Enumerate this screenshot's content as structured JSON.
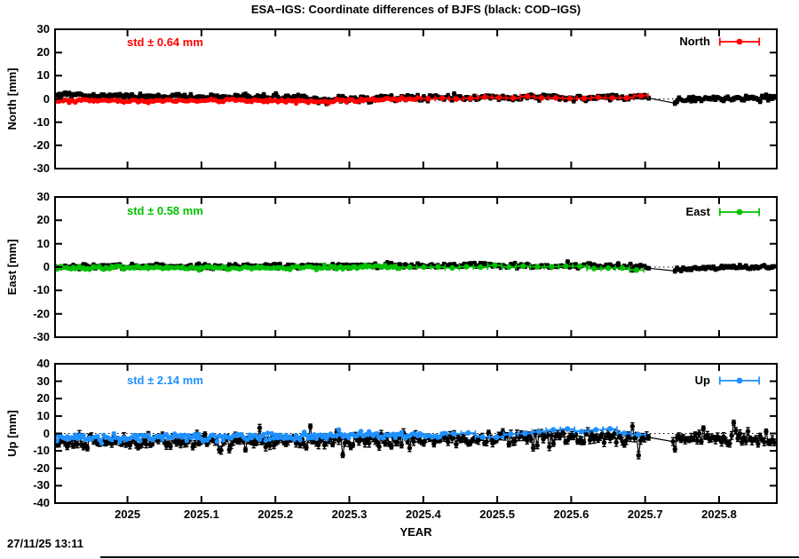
{
  "title": "ESA−IGS: Coordinate differences of BJFS (black: COD−IGS)",
  "timestamp": "27/11/25 13:11",
  "chart_data": {
    "type": "scatter",
    "xlabel": "YEAR",
    "x_range": [
      2024.902,
      2025.878
    ],
    "x_ticks": {
      "values": [
        2025,
        2025.1,
        2025.2,
        2025.3,
        2025.4,
        2025.5,
        2025.6,
        2025.7,
        2025.8
      ],
      "labels": [
        "2025",
        "2025.1",
        "2025.2",
        "2025.3",
        "2025.4",
        "2025.5",
        "2025.6",
        "2025.7",
        "2025.8"
      ]
    },
    "background": "#ffffff",
    "frame_color": "#000000",
    "zero_line_style": "dotted",
    "legend_position": "top-right-in-panel",
    "grid": false,
    "panels": [
      {
        "name": "North",
        "ylabel": "North [mm]",
        "ylim": [
          -30,
          30
        ],
        "yticks": {
          "values": [
            30,
            20,
            10,
            0,
            -10,
            -20,
            -30
          ],
          "labels": [
            "30",
            "20",
            "10",
            "0",
            "-10",
            "-20",
            "-30"
          ]
        },
        "std_label": "std ± 0.64 mm",
        "std_mm": 0.64,
        "legend_label": "North",
        "color": "#ff0000",
        "zero_line": true,
        "series": [
          {
            "name": "COD−IGS",
            "color": "#000000",
            "cadence": "daily",
            "seed": 101,
            "x_start": 2024.902,
            "x_end": 2025.877,
            "noise_std": 0.6,
            "errorbar_mm": 0.8,
            "gaps": [
              [
                2025.705,
                2025.738
              ]
            ],
            "mean_curve": [
              [
                2024.902,
                1.5
              ],
              [
                2025.05,
                1.2
              ],
              [
                2025.15,
                0.9
              ],
              [
                2025.22,
                0.7
              ],
              [
                2025.25,
                0.2
              ],
              [
                2025.27,
                -0.9
              ],
              [
                2025.29,
                0.3
              ],
              [
                2025.35,
                0.4
              ],
              [
                2025.45,
                0.5
              ],
              [
                2025.52,
                0.7
              ],
              [
                2025.55,
                1.0
              ],
              [
                2025.6,
                0.4
              ],
              [
                2025.65,
                0.6
              ],
              [
                2025.7,
                0.9
              ],
              [
                2025.735,
                -1.3
              ],
              [
                2025.76,
                0.0
              ],
              [
                2025.8,
                0.3
              ],
              [
                2025.877,
                0.6
              ]
            ]
          },
          {
            "name": "ESA−IGS",
            "color": "#ff0000",
            "cadence": "daily-then-weekly",
            "seed": 202,
            "x_start": 2024.902,
            "daily_end": 2025.395,
            "weekly_end": 2025.695,
            "noise_std": 0.4,
            "weekly_noise_std": 0.25,
            "errorbar_mm": 0.4,
            "mean_curve": [
              [
                2024.902,
                -0.7
              ],
              [
                2025.0,
                -0.9
              ],
              [
                2025.1,
                -0.7
              ],
              [
                2025.2,
                -0.8
              ],
              [
                2025.27,
                -1.2
              ],
              [
                2025.32,
                -0.4
              ],
              [
                2025.395,
                -0.1
              ]
            ],
            "weekly_mean_curve": [
              [
                2025.41,
                0.0
              ],
              [
                2025.46,
                0.3
              ],
              [
                2025.52,
                0.4
              ],
              [
                2025.56,
                0.8
              ],
              [
                2025.6,
                0.3
              ],
              [
                2025.64,
                0.6
              ],
              [
                2025.695,
                0.9
              ]
            ]
          }
        ]
      },
      {
        "name": "East",
        "ylabel": "East [mm]",
        "ylim": [
          -30,
          30
        ],
        "yticks": {
          "values": [
            30,
            20,
            10,
            0,
            -10,
            -20,
            -30
          ],
          "labels": [
            "30",
            "20",
            "10",
            "0",
            "-10",
            "-20",
            "-30"
          ]
        },
        "std_label": "std ± 0.58 mm",
        "std_mm": 0.58,
        "legend_label": "East",
        "color": "#00c000",
        "zero_line": true,
        "series": [
          {
            "name": "COD−IGS",
            "color": "#000000",
            "cadence": "daily",
            "seed": 303,
            "x_start": 2024.902,
            "x_end": 2025.877,
            "noise_std": 0.55,
            "errorbar_mm": 0.7,
            "gaps": [
              [
                2025.705,
                2025.738
              ]
            ],
            "mean_curve": [
              [
                2024.902,
                0.3
              ],
              [
                2025.1,
                0.3
              ],
              [
                2025.2,
                0.5
              ],
              [
                2025.3,
                0.6
              ],
              [
                2025.4,
                0.8
              ],
              [
                2025.5,
                0.5
              ],
              [
                2025.57,
                0.4
              ],
              [
                2025.62,
                1.0
              ],
              [
                2025.66,
                0.3
              ],
              [
                2025.7,
                0.1
              ],
              [
                2025.735,
                -1.5
              ],
              [
                2025.77,
                -0.5
              ],
              [
                2025.82,
                -0.2
              ],
              [
                2025.877,
                -0.3
              ]
            ]
          },
          {
            "name": "ESA−IGS",
            "color": "#00c000",
            "cadence": "daily-then-weekly",
            "seed": 404,
            "x_start": 2024.902,
            "daily_end": 2025.37,
            "weekly_end": 2025.69,
            "noise_std": 0.4,
            "weekly_noise_std": 0.3,
            "errorbar_mm": 0.4,
            "mean_curve": [
              [
                2024.902,
                -0.2
              ],
              [
                2025.0,
                -0.3
              ],
              [
                2025.1,
                -0.2
              ],
              [
                2025.2,
                -0.3
              ],
              [
                2025.3,
                -0.2
              ],
              [
                2025.37,
                0.0
              ]
            ],
            "weekly_mean_curve": [
              [
                2025.39,
                0.1
              ],
              [
                2025.45,
                0.0
              ],
              [
                2025.5,
                0.2
              ],
              [
                2025.55,
                -0.1
              ],
              [
                2025.6,
                0.3
              ],
              [
                2025.65,
                -0.2
              ],
              [
                2025.69,
                -1.3
              ]
            ]
          }
        ]
      },
      {
        "name": "Up",
        "ylabel": "Up [mm]",
        "ylim": [
          -40,
          40
        ],
        "yticks": {
          "values": [
            40,
            30,
            20,
            10,
            0,
            -10,
            -20,
            -30,
            -40
          ],
          "labels": [
            "40",
            "30",
            "20",
            "10",
            "0",
            "-10",
            "-20",
            "-30",
            "-40"
          ]
        },
        "std_label": "std ± 2.14 mm",
        "std_mm": 2.14,
        "legend_label": "Up",
        "color": "#1e90ff",
        "zero_line": true,
        "series": [
          {
            "name": "COD−IGS",
            "color": "#000000",
            "cadence": "daily",
            "seed": 505,
            "x_start": 2024.902,
            "x_end": 2025.877,
            "noise_std": 2.0,
            "errorbar_mm": 1.8,
            "spike_prob": 0.05,
            "spike_mag": 5,
            "gaps": [
              [
                2025.705,
                2025.735
              ]
            ],
            "mean_curve": [
              [
                2024.902,
                -5.5
              ],
              [
                2025.0,
                -5.0
              ],
              [
                2025.1,
                -4.5
              ],
              [
                2025.2,
                -4.5
              ],
              [
                2025.3,
                -4.0
              ],
              [
                2025.4,
                -3.5
              ],
              [
                2025.5,
                -3.0
              ],
              [
                2025.55,
                -2.0
              ],
              [
                2025.6,
                -1.5
              ],
              [
                2025.63,
                -2.5
              ],
              [
                2025.68,
                -2.0
              ],
              [
                2025.7,
                -2.5
              ],
              [
                2025.74,
                -4.5
              ],
              [
                2025.78,
                -3.0
              ],
              [
                2025.84,
                -3.5
              ],
              [
                2025.877,
                -4.0
              ]
            ]
          },
          {
            "name": "ESA−IGS",
            "color": "#1e90ff",
            "cadence": "daily-then-weekly",
            "seed": 606,
            "x_start": 2024.902,
            "daily_end": 2025.43,
            "weekly_end": 2025.7,
            "noise_std": 1.1,
            "weekly_noise_std": 0.6,
            "errorbar_mm": 0.6,
            "mean_curve": [
              [
                2024.902,
                -2.0
              ],
              [
                2025.0,
                -2.5
              ],
              [
                2025.05,
                -1.5
              ],
              [
                2025.1,
                -2.5
              ],
              [
                2025.15,
                -1.5
              ],
              [
                2025.2,
                -2.0
              ],
              [
                2025.25,
                -1.0
              ],
              [
                2025.3,
                -1.5
              ],
              [
                2025.35,
                -1.0
              ],
              [
                2025.43,
                -0.8
              ]
            ],
            "weekly_mean_curve": [
              [
                2025.45,
                -0.5
              ],
              [
                2025.49,
                -1.5
              ],
              [
                2025.52,
                0.0
              ],
              [
                2025.55,
                0.5
              ],
              [
                2025.585,
                2.5
              ],
              [
                2025.62,
                1.5
              ],
              [
                2025.65,
                2.0
              ],
              [
                2025.68,
                0.0
              ],
              [
                2025.7,
                -0.2
              ]
            ]
          }
        ]
      }
    ]
  }
}
